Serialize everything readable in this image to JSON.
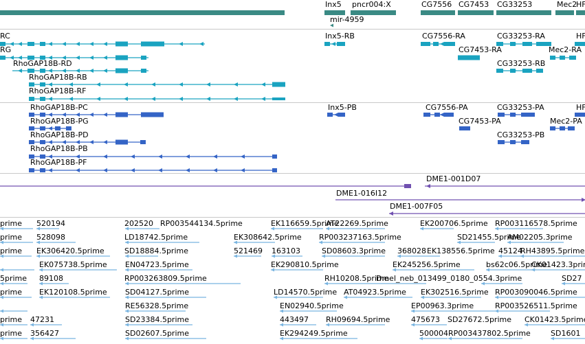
{
  "browser": {
    "colors": {
      "gene": "#3a8a84",
      "transcript": "#1aa3c0",
      "protein": "#3464c6",
      "clone": "#7050b0",
      "est": "#78b4e0",
      "separator": "#c8c8c8"
    },
    "gene_track": {
      "labels": [
        "Inx5",
        "pncr004:X",
        "mir-4959",
        "CG7556",
        "CG7453",
        "CG33253",
        "Mec2",
        "HF"
      ]
    },
    "transcript_track": {
      "labels": [
        "RC",
        "RG",
        "RhoGAP18B-RD",
        "RhoGAP18B-RB",
        "RhoGAP18B-RF",
        "Inx5-RB",
        "CG7556-RA",
        "CG7453-RA",
        "CG33253-RA",
        "CG33253-RB",
        "Mec2-RA",
        "HF"
      ]
    },
    "protein_track": {
      "labels": [
        "RhoGAP18B-PC",
        "RhoGAP18B-PG",
        "RhoGAP18B-PD",
        "RhoGAP18B-PB",
        "RhoGAP18B-PF",
        "Inx5-PB",
        "CG7556-PA",
        "CG7453-PA",
        "CG33253-PA",
        "CG33253-PB",
        "Mec2-PA",
        "HF"
      ]
    },
    "clone_track": {
      "labels": [
        "DME1-001D07",
        "DME1-016I12",
        "DME1-007F05"
      ]
    },
    "est_track": {
      "labels": [
        "prime",
        "520194",
        "202520",
        "RP003544134.5prime",
        "EK116659.5prime",
        "AT22269.5prime",
        "EK200706.5prime",
        "RP003116578.5prime",
        "prime",
        "528098",
        "LD18742.5prime",
        "EK308642.5prime",
        "RP003237163.5prime",
        "SD21455.5prime",
        "AM02205.3prime",
        "prime",
        "EK306420.5prime",
        "SD18884.5prime",
        "521469",
        "163103",
        "SD08603.3prime",
        "368028",
        "EK138556.5prime",
        "45124",
        "RH43895.5prime",
        "EK075738.5prime",
        "EN04723.5prime",
        "EK290810.5prime",
        "EK245256.5prime",
        "bs62c06.5prime",
        "CK01423.3prime",
        "5prime",
        "89108",
        "RP003263809.5prime",
        "RH10208.5prime",
        "Dmel_neb_013499_0180_0554.3prime",
        "SD27",
        "prime",
        "EK120108.5prime",
        "SD04127.5prime",
        "LD14570.5prime",
        "AT04923.5prime",
        "EK302516.5prime",
        "RP003090046.5prime",
        "RE56328.5prime",
        "EN02940.5prime",
        "EP00963.3prime",
        "RP003526511.5prime",
        "prime",
        "47231",
        "SD23384.5prime",
        "443497",
        "RH09694.5prime",
        "475673",
        "SD27672.5prime",
        "CK01423.5prime",
        "prime",
        "356427",
        "SD02607.5prime",
        "EK294249.5prime",
        "500004",
        "RP003437802.5prime",
        "SD1601"
      ]
    }
  }
}
